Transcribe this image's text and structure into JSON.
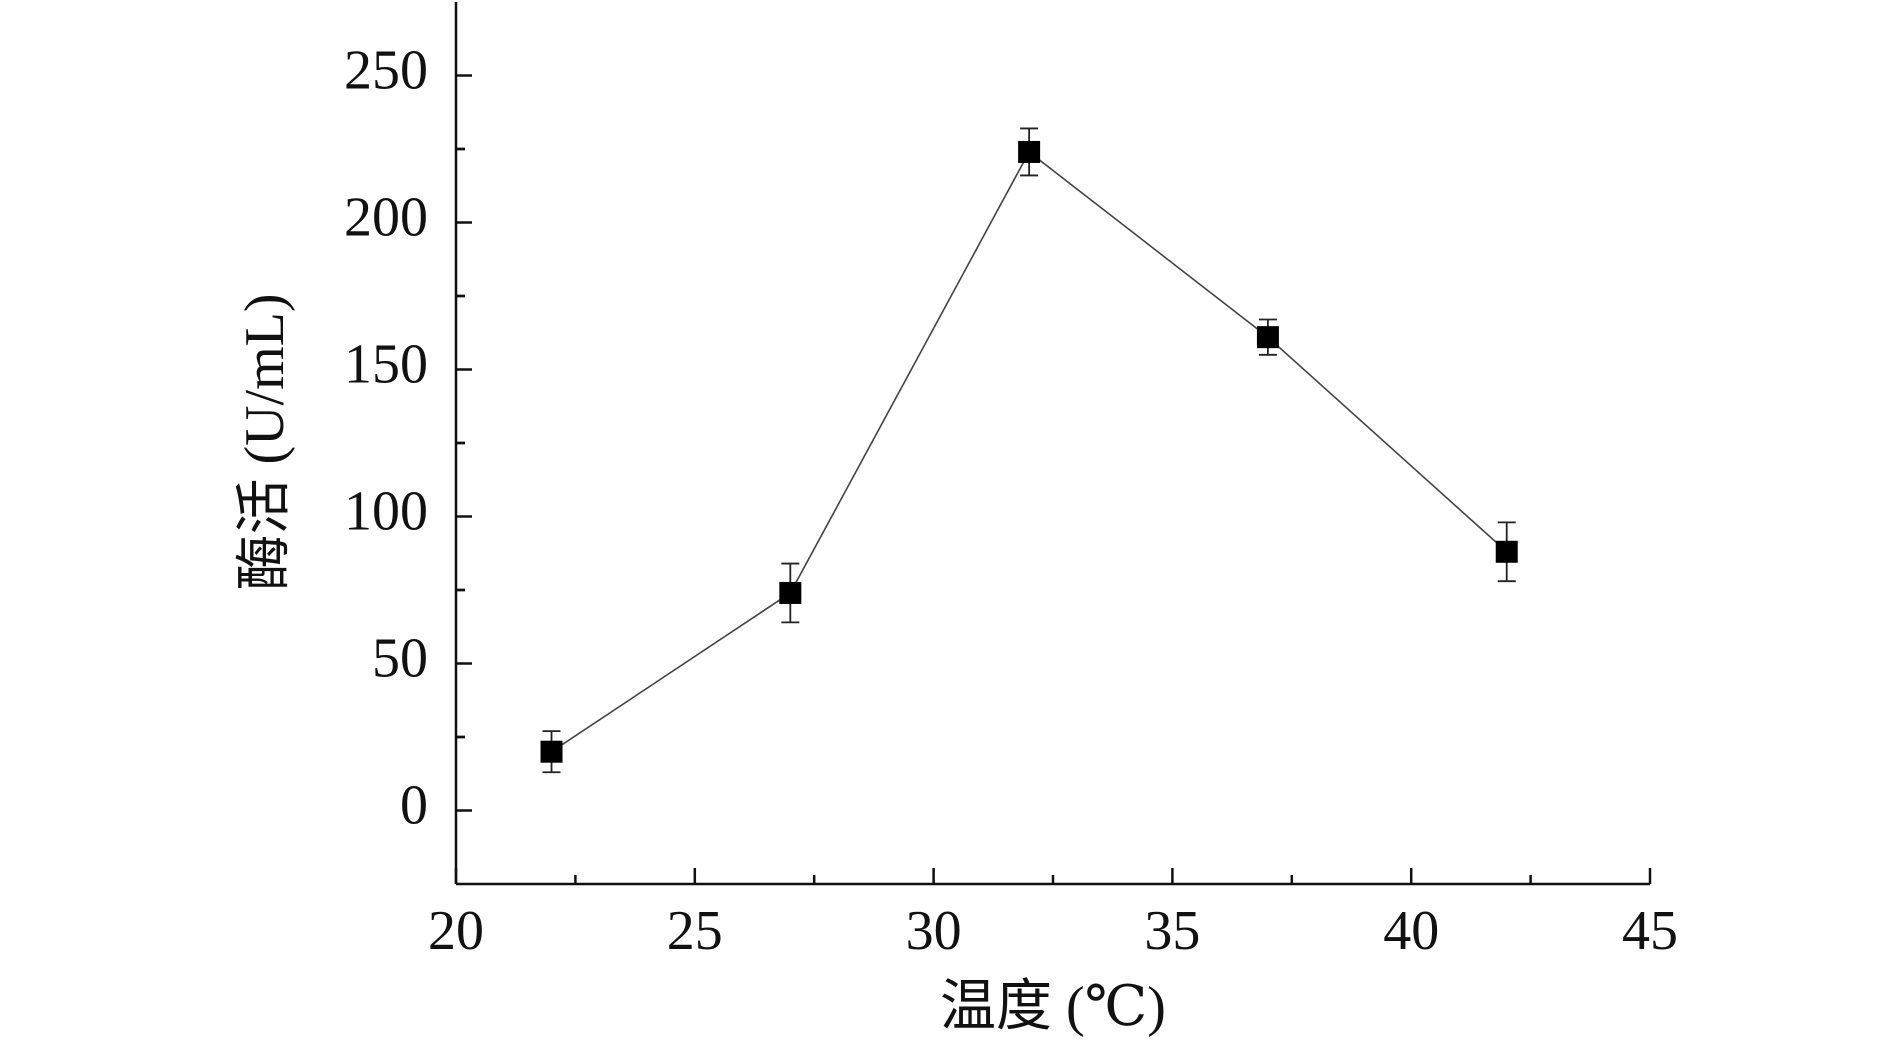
{
  "chart_data": {
    "type": "line",
    "xlabel": "温度 (℃)",
    "ylabel": "酶活 (U/mL)",
    "x": [
      22,
      27,
      32,
      37,
      42
    ],
    "series": [
      {
        "color": "#000000",
        "values": [
          20,
          74,
          224,
          161,
          88
        ],
        "errors": [
          7,
          10,
          8,
          6,
          10
        ]
      }
    ],
    "xlim": [
      20,
      45
    ],
    "xticks": [
      20,
      25,
      30,
      35,
      40,
      45
    ],
    "ylim": [
      -25,
      275
    ],
    "yticks": [
      0,
      50,
      100,
      150,
      200,
      250
    ],
    "minor_ticks": true,
    "grid": false
  }
}
